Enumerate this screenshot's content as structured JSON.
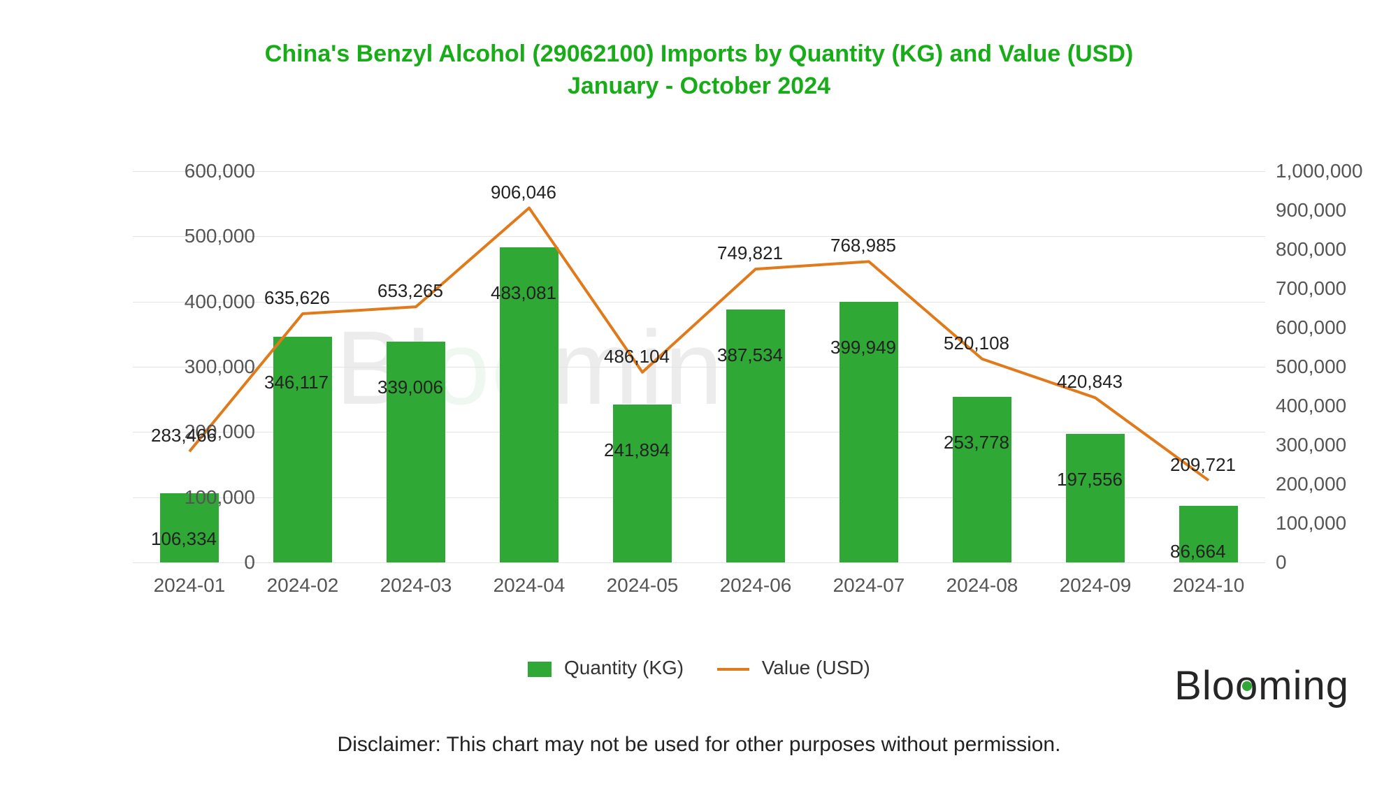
{
  "title_line1": "China's Benzyl Alcohol (29062100) Imports by Quantity (KG) and Value (USD)",
  "title_line2": "January - October 2024",
  "chart": {
    "type": "bar+line",
    "background_color": "#ffffff",
    "grid_color": "#e3e3e3",
    "categories": [
      "2024-01",
      "2024-02",
      "2024-03",
      "2024-04",
      "2024-05",
      "2024-06",
      "2024-07",
      "2024-08",
      "2024-09",
      "2024-10"
    ],
    "bar_series": {
      "label": "Quantity (KG)",
      "color": "#2fa836",
      "values": [
        106334,
        346117,
        339006,
        483081,
        241894,
        387534,
        399949,
        253778,
        197556,
        86664
      ],
      "value_labels": [
        "106,334",
        "346,117",
        "339,006",
        "483,081",
        "241,894",
        "387,534",
        "399,949",
        "253,778",
        "197,556",
        "86,664"
      ],
      "bar_width_ratio": 0.52
    },
    "line_series": {
      "label": "Value (USD)",
      "color": "#e07a1b",
      "line_width": 4,
      "values": [
        283466,
        635626,
        653265,
        906046,
        486104,
        749821,
        768985,
        520108,
        420843,
        209721
      ],
      "value_labels": [
        "283,466",
        "635,626",
        "653,265",
        "906,046",
        "486,104",
        "749,821",
        "768,985",
        "520,108",
        "420,843",
        "209,721"
      ]
    },
    "y_left": {
      "min": 0,
      "max": 600000,
      "step": 100000,
      "tick_labels": [
        "0",
        "100,000",
        "200,000",
        "300,000",
        "400,000",
        "500,000",
        "600,000"
      ]
    },
    "y_right": {
      "min": 0,
      "max": 1000000,
      "step": 100000,
      "tick_labels": [
        "0",
        "100,000",
        "200,000",
        "300,000",
        "400,000",
        "500,000",
        "600,000",
        "700,000",
        "800,000",
        "900,000",
        "1,000,000"
      ]
    },
    "axis_fontsize": 28,
    "title_color": "#18ac18",
    "title_fontsize": 34,
    "label_fontsize": 26
  },
  "legend": {
    "bar_label": "Quantity (KG)",
    "line_label": "Value (USD)"
  },
  "watermark_text": "Blooming",
  "brand_text": "Blooming",
  "disclaimer": "Disclaimer: This chart may not be used for other purposes without permission."
}
